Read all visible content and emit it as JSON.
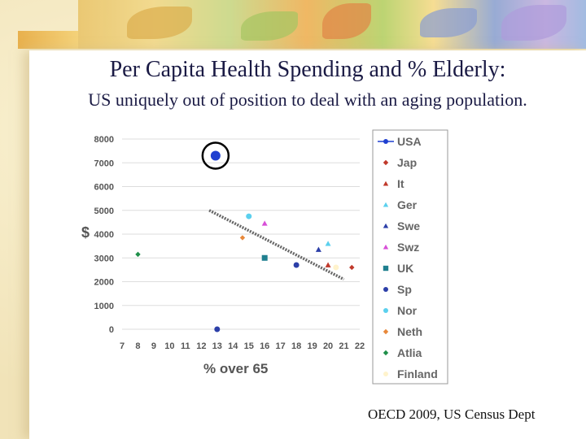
{
  "slide": {
    "title": "Per Capita Health Spending and % Elderly:",
    "subtitle": "US uniquely out of position to deal with an aging population.",
    "source": "OECD 2009, US Census Dept"
  },
  "chart_data": {
    "type": "scatter",
    "title": "",
    "xlabel": "%  over 65",
    "ylabel": "$",
    "xlim": [
      7,
      22
    ],
    "ylim": [
      0,
      8000
    ],
    "x_ticks": [
      7,
      8,
      9,
      10,
      11,
      12,
      13,
      14,
      15,
      16,
      17,
      18,
      19,
      20,
      21,
      22
    ],
    "y_ticks": [
      0,
      1000,
      2000,
      3000,
      4000,
      5000,
      6000,
      7000,
      8000
    ],
    "grid": "horizontal",
    "legend_position": "right",
    "series": [
      {
        "name": "USA",
        "marker": "circle",
        "color": "#1f3fd0",
        "points": [
          [
            12.9,
            7300
          ]
        ]
      },
      {
        "name": "Jap",
        "marker": "diamond",
        "color": "#c0392b",
        "points": [
          [
            21.5,
            2600
          ]
        ]
      },
      {
        "name": "It",
        "marker": "triangle",
        "color": "#c0392b",
        "points": [
          [
            20,
            2700
          ]
        ]
      },
      {
        "name": "Ger",
        "marker": "triangle",
        "color": "#5bd0ee",
        "points": [
          [
            20,
            3600
          ]
        ]
      },
      {
        "name": "Swe",
        "marker": "triangle",
        "color": "#2c3fa8",
        "points": [
          [
            19.4,
            3350
          ]
        ]
      },
      {
        "name": "Swz",
        "marker": "triangle",
        "color": "#d84fd8",
        "points": [
          [
            16,
            4450
          ]
        ]
      },
      {
        "name": "UK",
        "marker": "square",
        "color": "#1f7f8f",
        "points": [
          [
            16,
            3000
          ]
        ]
      },
      {
        "name": "Sp",
        "marker": "circle",
        "color": "#2c3fa8",
        "points": [
          [
            18,
            2700
          ],
          [
            13,
            0
          ]
        ]
      },
      {
        "name": "Nor",
        "marker": "circle",
        "color": "#5bd0ee",
        "points": [
          [
            15,
            4750
          ]
        ]
      },
      {
        "name": "Neth",
        "marker": "diamond",
        "color": "#e8883a",
        "points": [
          [
            14.6,
            3850
          ]
        ]
      },
      {
        "name": "Atlia",
        "marker": "diamond",
        "color": "#1f8f4a",
        "points": [
          [
            8,
            3150
          ]
        ]
      },
      {
        "name": "Finland",
        "marker": "circle",
        "color": "#fff3cc",
        "points": [
          [
            20.5,
            2600
          ]
        ]
      }
    ],
    "trendline": {
      "from": [
        12.5,
        5000
      ],
      "to": [
        21,
        2100
      ]
    },
    "highlight": {
      "series": "USA",
      "shape": "circle"
    }
  }
}
